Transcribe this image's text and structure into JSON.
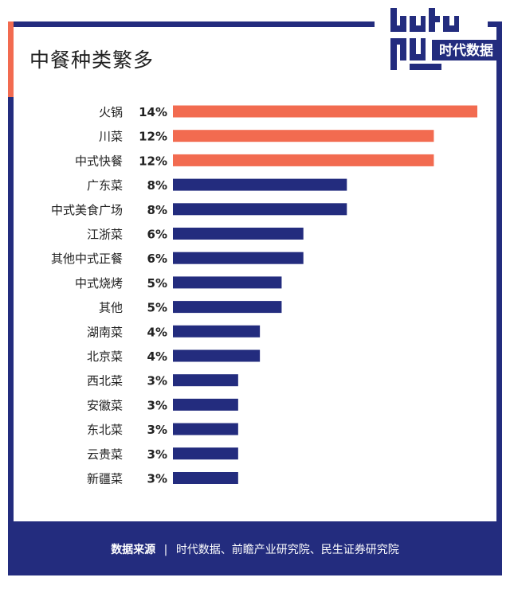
{
  "title": "中餐种类繁多",
  "logo": {
    "wordmark": "data guu",
    "text": "时代数据"
  },
  "footer": {
    "label": "数据来源",
    "separator": "|",
    "sources": "时代数据、前瞻产业研究院、民生证券研究院"
  },
  "colors": {
    "highlight": "#f26b50",
    "primary": "#232c7e"
  },
  "chart_data": {
    "type": "bar",
    "orientation": "horizontal",
    "categories": [
      "火锅",
      "川菜",
      "中式快餐",
      "广东菜",
      "中式美食广场",
      "江浙菜",
      "其他中式正餐",
      "中式烧烤",
      "其他",
      "湖南菜",
      "北京菜",
      "西北菜",
      "安徽菜",
      "东北菜",
      "云贵菜",
      "新疆菜"
    ],
    "values": [
      14,
      12,
      12,
      8,
      8,
      6,
      6,
      5,
      5,
      4,
      4,
      3,
      3,
      3,
      3,
      3
    ],
    "value_labels": [
      "14%",
      "12%",
      "12%",
      "8%",
      "8%",
      "6%",
      "6%",
      "5%",
      "5%",
      "4%",
      "4%",
      "3%",
      "3%",
      "3%",
      "3%",
      "3%"
    ],
    "highlight_count": 3,
    "xlim": [
      0,
      14
    ],
    "grid": false,
    "legend": "none"
  }
}
